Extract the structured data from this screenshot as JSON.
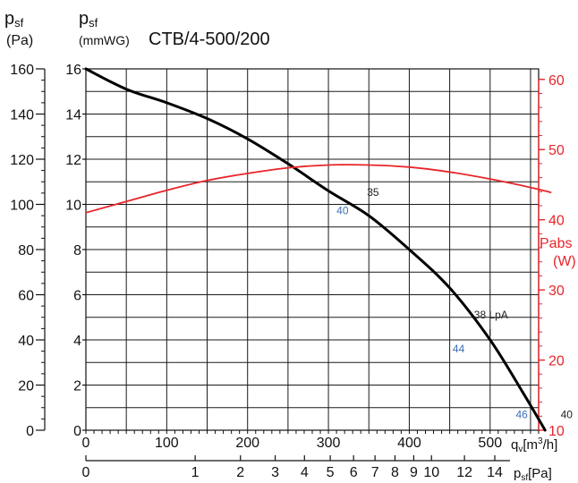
{
  "chart_data": {
    "type": "line",
    "title": "CTB/4-500/200",
    "axes": {
      "left_outer": {
        "label": "p",
        "sub": "sf",
        "unit": "(Pa)",
        "range": [
          0,
          160
        ],
        "ticks": [
          0,
          20,
          40,
          60,
          80,
          100,
          120,
          140,
          160
        ]
      },
      "left_inner": {
        "label": "p",
        "sub": "sf",
        "unit": "(mmWG)",
        "range": [
          0,
          16
        ],
        "ticks": [
          0,
          2,
          4,
          6,
          8,
          10,
          12,
          14,
          16
        ]
      },
      "right": {
        "label": "Pabs",
        "unit": "(W)",
        "range": [
          10,
          60
        ],
        "ticks": [
          10,
          20,
          30,
          40,
          50,
          60
        ],
        "color": "#e8252a"
      },
      "bottom": {
        "label": "q",
        "sub": "v",
        "unit": "[m",
        "unit_sup": "3",
        "unit_tail": "/h]",
        "range": [
          0,
          560
        ],
        "ticks": [
          0,
          100,
          200,
          300,
          400,
          500
        ]
      },
      "bottom_secondary": {
        "label": "p",
        "sub": "sf",
        "unit": "[Pa]",
        "ticks": [
          0,
          1,
          2,
          3,
          4,
          5,
          6,
          7,
          8,
          9,
          10,
          12,
          14
        ]
      }
    },
    "series": [
      {
        "color": "#000000",
        "axis": "left_outer",
        "x": [
          0,
          50,
          100,
          150,
          200,
          250,
          300,
          350,
          400,
          450,
          500,
          540,
          568
        ],
        "y": [
          160,
          151,
          145,
          138,
          129,
          118,
          106,
          95,
          80,
          63,
          40,
          17,
          0
        ]
      },
      {
        "color": "#e8252a",
        "axis": "right",
        "x": [
          0,
          50,
          100,
          150,
          200,
          250,
          300,
          350,
          400,
          450,
          500,
          550,
          575
        ],
        "y": [
          41,
          42.6,
          44.2,
          45.6,
          46.6,
          47.4,
          47.8,
          47.8,
          47.5,
          46.8,
          45.8,
          44.6,
          43.9
        ]
      }
    ],
    "annotations": [
      {
        "text": "35",
        "x": 350,
        "y": 99,
        "color": "#222222"
      },
      {
        "text": "40",
        "x": 330,
        "y": 98,
        "color": "#3d6fb6"
      },
      {
        "text": "38 LpA",
        "x": 500,
        "y": 44,
        "color": "#222222"
      },
      {
        "text": "44",
        "x": 478,
        "y": 40,
        "color": "#3d6fb6"
      },
      {
        "text": "46",
        "x": 545,
        "y": 3,
        "color": "#3d6fb6"
      },
      {
        "text": "40",
        "x": 585,
        "y": 3,
        "color": "#222222"
      }
    ],
    "grid": true
  }
}
